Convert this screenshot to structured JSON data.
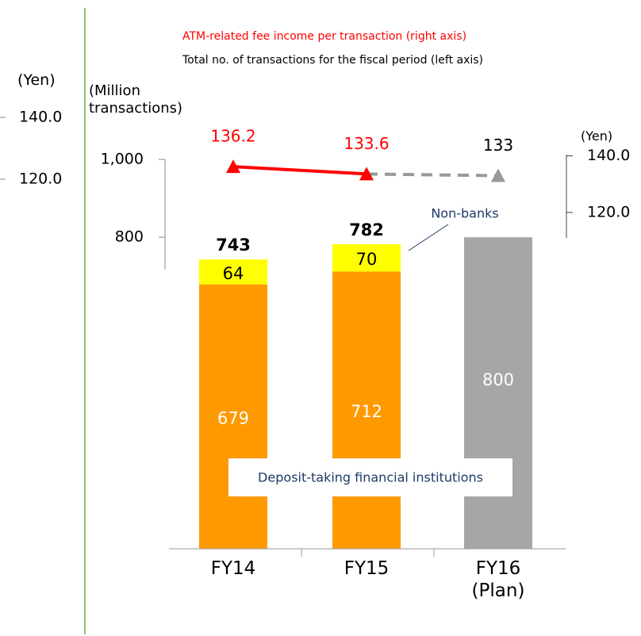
{
  "chart_data": {
    "type": "bar",
    "legend_line": "ATM-related fee income per transaction (right axis)",
    "legend_bars": "Total no. of transactions for the fiscal period (left axis)",
    "ylabel": "(Million\ntransactions)",
    "y2label": "(Yen)",
    "categories": [
      "FY14",
      "FY15",
      "FY16\n(Plan)"
    ],
    "ylim": [
      0,
      1000
    ],
    "yticks": [
      {
        "value": 1000,
        "label": "1,000"
      },
      800
    ],
    "y2lim": [
      111,
      141
    ],
    "y2ticks": [
      {
        "value": 140,
        "label": "140.0"
      },
      {
        "value": 120,
        "label": "120.0"
      }
    ],
    "series": [
      {
        "name": "Deposit-taking financial institutions",
        "color": "#ff9900",
        "label_color": "#ffffff",
        "values": [
          679,
          712,
          null
        ]
      },
      {
        "name": "Non-banks",
        "color": "#ffff00",
        "label_color": "#000000",
        "values": [
          64,
          70,
          null
        ]
      },
      {
        "color": "#a6a6a6",
        "label_color": "#ffffff",
        "values": [
          null,
          null,
          800
        ]
      }
    ],
    "totals": [
      743,
      782,
      null
    ],
    "line": {
      "axis": "y2",
      "values": [
        136.2,
        133.6,
        133.0
      ],
      "point_colors": [
        "#ff0000",
        "#ff0000",
        "#999999"
      ],
      "label_colors": [
        "#ff0000",
        "#ff0000",
        "#000000"
      ],
      "segment_dashed": [
        false,
        true
      ]
    },
    "left_fragment": {
      "label": "(Yen)",
      "ticks": [
        {
          "value": 140,
          "label": "140.0"
        },
        {
          "value": 120,
          "label": "120.0"
        }
      ]
    }
  }
}
